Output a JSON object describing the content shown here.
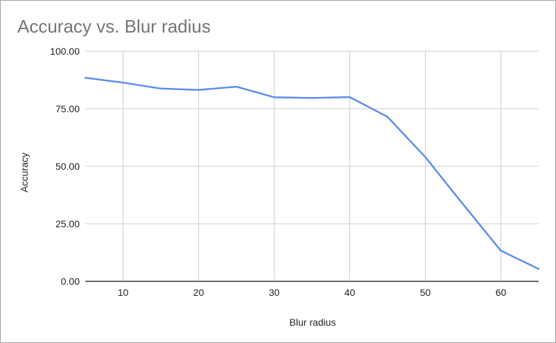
{
  "chart_data": {
    "type": "line",
    "title": "Accuracy vs. Blur radius",
    "xlabel": "Blur radius",
    "ylabel": "Accuracy",
    "x": [
      5,
      10,
      15,
      20,
      25,
      30,
      35,
      40,
      45,
      50,
      55,
      60,
      65
    ],
    "series": [
      {
        "values": [
          88.5,
          86.4,
          83.8,
          83.2,
          84.6,
          80.0,
          79.7,
          80.1,
          71.5,
          54.0,
          33.5,
          13.3,
          5.4
        ]
      }
    ],
    "xlim": [
      5,
      65
    ],
    "ylim": [
      0,
      100
    ],
    "xticks": [
      10,
      20,
      30,
      40,
      50,
      60
    ],
    "xtick_labels": [
      "10",
      "20",
      "30",
      "40",
      "50",
      "60"
    ],
    "yticks": [
      0,
      25,
      50,
      75,
      100
    ],
    "ytick_labels": [
      "0.00",
      "25.00",
      "50.00",
      "75.00",
      "100.00"
    ],
    "grid": true,
    "line_color": "#5b8def",
    "grid_color": "#cccccc",
    "axis_color": "#333333"
  }
}
